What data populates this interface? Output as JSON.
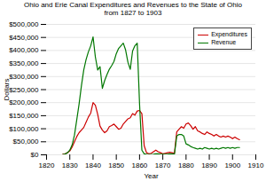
{
  "chart_data": {
    "type": "line",
    "title": "Ohio and Erie Canal Expenditures and Revenues to the State of Ohio\nfrom 1827 to 1903",
    "xlabel": "Year",
    "ylabel": "Dollars",
    "xlim": [
      1820,
      1910
    ],
    "ylim": [
      0,
      500000
    ],
    "xticks": [
      1820,
      1830,
      1840,
      1850,
      1860,
      1870,
      1880,
      1890,
      1900,
      1910
    ],
    "yticks": [
      {
        "value": 0,
        "label": "$0"
      },
      {
        "value": 50000,
        "label": "$50,000"
      },
      {
        "value": 100000,
        "label": "$100,000"
      },
      {
        "value": 150000,
        "label": "$150,000"
      },
      {
        "value": 200000,
        "label": "$200,000"
      },
      {
        "value": 250000,
        "label": "$250,000"
      },
      {
        "value": 300000,
        "label": "$300,000"
      },
      {
        "value": 350000,
        "label": "$350,000"
      },
      {
        "value": 400000,
        "label": "$400,000"
      },
      {
        "value": 450000,
        "label": "$450,000"
      },
      {
        "value": 500000,
        "label": "$500,000"
      }
    ],
    "grid": "y",
    "legend": "upper right",
    "x": [
      1827,
      1828,
      1829,
      1830,
      1831,
      1832,
      1833,
      1834,
      1835,
      1836,
      1837,
      1838,
      1839,
      1840,
      1841,
      1842,
      1843,
      1844,
      1845,
      1846,
      1847,
      1848,
      1849,
      1850,
      1851,
      1852,
      1853,
      1854,
      1855,
      1856,
      1857,
      1858,
      1859,
      1860,
      1861,
      1862,
      1863,
      1864,
      1865,
      1866,
      1867,
      1868,
      1869,
      1870,
      1871,
      1872,
      1873,
      1874,
      1875,
      1876,
      1877,
      1878,
      1879,
      1880,
      1881,
      1882,
      1883,
      1884,
      1885,
      1886,
      1887,
      1888,
      1889,
      1890,
      1891,
      1892,
      1893,
      1894,
      1895,
      1896,
      1897,
      1898,
      1899,
      1900,
      1901,
      1902,
      1903
    ],
    "series": [
      {
        "name": "Expenditures",
        "color": "#cc0000",
        "values": [
          2000,
          4000,
          8000,
          15000,
          30000,
          50000,
          70000,
          85000,
          95000,
          105000,
          125000,
          145000,
          160000,
          200000,
          190000,
          155000,
          110000,
          95000,
          85000,
          92000,
          108000,
          112000,
          118000,
          108000,
          98000,
          102000,
          118000,
          128000,
          138000,
          142000,
          158000,
          152000,
          168000,
          170000,
          158000,
          35000,
          8000,
          4000,
          6000,
          12000,
          18000,
          12000,
          8000,
          4000,
          6000,
          8000,
          10000,
          8000,
          6000,
          88000,
          98000,
          108000,
          102000,
          118000,
          122000,
          112000,
          98000,
          108000,
          92000,
          88000,
          82000,
          78000,
          88000,
          82000,
          78000,
          72000,
          78000,
          72000,
          68000,
          72000,
          68000,
          72000,
          68000,
          62000,
          68000,
          62000,
          58000
        ]
      },
      {
        "name": "Revenue",
        "color": "#007700",
        "values": [
          1000,
          3000,
          8000,
          18000,
          38000,
          75000,
          135000,
          195000,
          265000,
          325000,
          365000,
          395000,
          418000,
          452000,
          375000,
          325000,
          338000,
          255000,
          285000,
          308000,
          328000,
          342000,
          358000,
          388000,
          408000,
          418000,
          428000,
          402000,
          355000,
          328000,
          398000,
          418000,
          428000,
          195000,
          18000,
          4000,
          2000,
          1500,
          1500,
          2000,
          4000,
          4000,
          2000,
          2000,
          2000,
          2000,
          4000,
          4000,
          2000,
          72000,
          78000,
          78000,
          72000,
          42000,
          38000,
          32000,
          28000,
          25000,
          22000,
          25000,
          22000,
          28000,
          25000,
          22000,
          25000,
          22000,
          25000,
          22000,
          25000,
          28000,
          25000,
          28000,
          25000,
          28000,
          25000,
          28000,
          28000
        ]
      }
    ]
  }
}
